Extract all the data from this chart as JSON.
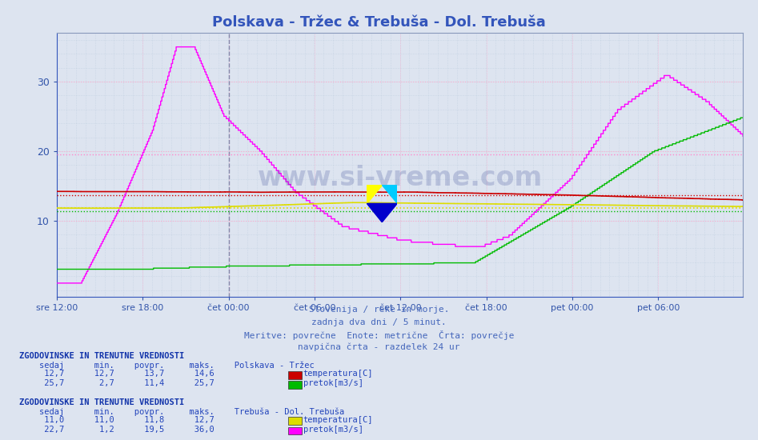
{
  "title": "Polskava - Tržec & Trebuša - Dol. Trebuša",
  "title_color": "#3355bb",
  "bg_color": "#dde4f0",
  "plot_bg_color": "#dde4f0",
  "grid_color_dotted": "#bbccdd",
  "grid_color_pink_h": "#ffaacc",
  "grid_color_pink_v": "#ffaacc",
  "ylim": [
    -1,
    37
  ],
  "yticks": [
    10,
    20,
    30
  ],
  "tick_color": "#3355aa",
  "num_points": 576,
  "x_tick_labels": [
    "sre 12:00",
    "sre 18:00",
    "čet 00:00",
    "čet 06:00",
    "čet 12:00",
    "čet 18:00",
    "pet 00:00",
    "pet 06:00"
  ],
  "x_tick_positions": [
    0,
    72,
    144,
    216,
    288,
    360,
    432,
    504
  ],
  "subtitle_lines": [
    "Slovenija / reke in morje.",
    "zadnja dva dni / 5 minut.",
    "Meritve: povrečne  Enote: metrične  Črta: povrečje",
    "navpična črta - razdelek 24 ur"
  ],
  "subtitle_color": "#4466bb",
  "color_temp1": "#cc0000",
  "color_pretok1": "#00bb00",
  "color_temp2": "#dddd00",
  "color_pretok2": "#ff00ff",
  "color_avg_pretok2": "#ff88cc",
  "color_sep": "#aaaacc",
  "watermark_color": "#223388",
  "legend_info": [
    {
      "label": "ZGODOVINSKE IN TRENUTNE VREDNOSTI",
      "station": "Polskava - Tržec",
      "rows": [
        {
          "sedaj": "12,7",
          "min": "12,7",
          "povpr": "13,7",
          "maks": "14,6",
          "name": "temperatura[C]",
          "color": "#cc0000"
        },
        {
          "sedaj": "25,7",
          "min": "2,7",
          "povpr": "11,4",
          "maks": "25,7",
          "name": "pretok[m3/s]",
          "color": "#00bb00"
        }
      ]
    },
    {
      "label": "ZGODOVINSKE IN TRENUTNE VREDNOSTI",
      "station": "Trebuša - Dol. Trebuša",
      "rows": [
        {
          "sedaj": "11,0",
          "min": "11,0",
          "povpr": "11,8",
          "maks": "12,7",
          "name": "temperatura[C]",
          "color": "#dddd00"
        },
        {
          "sedaj": "22,7",
          "min": "1,2",
          "povpr": "19,5",
          "maks": "36,0",
          "name": "pretok[m3/s]",
          "color": "#ff00ff"
        }
      ]
    }
  ],
  "avg_temp1": 13.7,
  "avg_pretok1": 11.4,
  "avg_temp2": 11.8,
  "avg_pretok2": 19.5
}
